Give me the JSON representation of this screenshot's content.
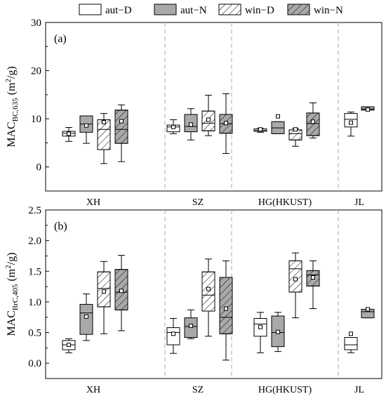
{
  "legend": [
    {
      "label": "aut−D",
      "fill": "#ffffff",
      "hatch": false
    },
    {
      "label": "aut−N",
      "fill": "#a9a9a9",
      "hatch": false
    },
    {
      "label": "win−D",
      "fill": "#ffffff",
      "hatch": true
    },
    {
      "label": "win−N",
      "fill": "#a9a9a9",
      "hatch": true
    }
  ],
  "colors": {
    "gray_fill": "#a9a9a9",
    "white_fill": "#ffffff",
    "stroke": "#000000",
    "divider": "#a8a8a8"
  },
  "chart_data": [
    {
      "type": "box",
      "panel_label": "(a)",
      "ylabel_main": "MAC",
      "ylabel_sub": "BC,635",
      "ylabel_unit": " (m",
      "ylabel_sup": "2",
      "ylabel_tail": "/g)",
      "ylim": [
        -5,
        30
      ],
      "yticks": [
        0,
        10,
        20,
        30
      ],
      "groups": [
        "XH",
        "SZ",
        "HG(HKUST)",
        "JL"
      ],
      "series": [
        {
          "name": "aut−D",
          "boxes": [
            {
              "group": "XH",
              "min": 5.3,
              "q1": 6.4,
              "median": 7.0,
              "q3": 7.4,
              "max": 8.2,
              "mean": 6.9
            },
            {
              "group": "SZ",
              "min": 6.9,
              "q1": 7.3,
              "median": 8.3,
              "q3": 8.7,
              "max": 9.8,
              "mean": 8.3
            },
            {
              "group": "HG(HKUST)",
              "min": 7.2,
              "q1": 7.4,
              "median": 7.6,
              "q3": 7.9,
              "max": 8.0,
              "mean": 7.8
            },
            {
              "group": "JL",
              "min": 6.4,
              "q1": 8.3,
              "median": 9.9,
              "q3": 11.1,
              "max": 11.4,
              "mean": 9.2
            }
          ]
        },
        {
          "name": "aut−N",
          "boxes": [
            {
              "group": "XH",
              "min": 4.9,
              "q1": 7.2,
              "median": 8.9,
              "q3": 10.6,
              "max": 10.6,
              "mean": 8.6
            },
            {
              "group": "SZ",
              "min": 5.6,
              "q1": 7.3,
              "median": 8.4,
              "q3": 10.9,
              "max": 12.1,
              "mean": 8.8
            },
            {
              "group": "HG(HKUST)",
              "min": 6.9,
              "q1": 6.9,
              "median": 8.1,
              "q3": 9.4,
              "max": 9.4,
              "mean": 10.5
            },
            {
              "group": "JL",
              "min": 11.8,
              "q1": 11.8,
              "median": 12.0,
              "q3": 12.5,
              "max": 12.5,
              "mean": 11.9
            }
          ]
        },
        {
          "name": "win−D",
          "boxes": [
            {
              "group": "XH",
              "min": 0.7,
              "q1": 3.6,
              "median": 7.8,
              "q3": 9.8,
              "max": 11.1,
              "mean": 9.3
            },
            {
              "group": "SZ",
              "min": 6.5,
              "q1": 7.5,
              "median": 9.1,
              "q3": 11.6,
              "max": 14.9,
              "mean": 9.8
            },
            {
              "group": "HG(HKUST)",
              "min": 4.3,
              "q1": 5.6,
              "median": 6.9,
              "q3": 7.7,
              "max": 8.0,
              "mean": 7.8
            }
          ]
        },
        {
          "name": "win−N",
          "boxes": [
            {
              "group": "XH",
              "min": 1.1,
              "q1": 4.9,
              "median": 7.8,
              "q3": 11.8,
              "max": 12.9,
              "mean": 9.5
            },
            {
              "group": "SZ",
              "min": 2.8,
              "q1": 7.0,
              "median": 9.0,
              "q3": 10.9,
              "max": 15.2,
              "mean": 9.1
            },
            {
              "group": "HG(HKUST)",
              "min": 6.0,
              "q1": 6.5,
              "median": 9.0,
              "q3": 11.2,
              "max": 13.3,
              "mean": 9.4
            }
          ]
        }
      ]
    },
    {
      "type": "box",
      "panel_label": "(b)",
      "ylabel_main": "MAC",
      "ylabel_sub": "BrC,405",
      "ylabel_unit": " (m",
      "ylabel_sup": "2",
      "ylabel_tail": "/g)",
      "ylim": [
        -0.25,
        2.5
      ],
      "yticks": [
        0.0,
        0.5,
        1.0,
        1.5,
        2.0,
        2.5
      ],
      "groups": [
        "XH",
        "SZ",
        "HG(HKUST)",
        "JL"
      ],
      "series": [
        {
          "name": "aut−D",
          "boxes": [
            {
              "group": "XH",
              "min": 0.17,
              "q1": 0.22,
              "median": 0.3,
              "q3": 0.37,
              "max": 0.4,
              "mean": 0.3
            },
            {
              "group": "SZ",
              "min": 0.16,
              "q1": 0.3,
              "median": 0.5,
              "q3": 0.58,
              "max": 0.73,
              "mean": 0.48
            },
            {
              "group": "HG(HKUST)",
              "min": 0.17,
              "q1": 0.44,
              "median": 0.64,
              "q3": 0.73,
              "max": 0.83,
              "mean": 0.59
            },
            {
              "group": "JL",
              "min": 0.17,
              "q1": 0.22,
              "median": 0.3,
              "q3": 0.42,
              "max": 0.42,
              "mean": 0.48
            }
          ]
        },
        {
          "name": "aut−N",
          "boxes": [
            {
              "group": "XH",
              "min": 0.37,
              "q1": 0.47,
              "median": 0.82,
              "q3": 0.96,
              "max": 1.13,
              "mean": 0.76
            },
            {
              "group": "SZ",
              "min": 0.4,
              "q1": 0.42,
              "median": 0.6,
              "q3": 0.74,
              "max": 0.87,
              "mean": 0.61
            },
            {
              "group": "HG(HKUST)",
              "min": 0.19,
              "q1": 0.27,
              "median": 0.5,
              "q3": 0.77,
              "max": 0.83,
              "mean": 0.51
            },
            {
              "group": "JL",
              "min": 0.74,
              "q1": 0.74,
              "median": 0.84,
              "q3": 0.88,
              "max": 0.88,
              "mean": 0.88
            }
          ]
        },
        {
          "name": "win−D",
          "boxes": [
            {
              "group": "XH",
              "min": 0.48,
              "q1": 0.92,
              "median": 1.22,
              "q3": 1.49,
              "max": 1.66,
              "mean": 1.17
            },
            {
              "group": "SZ",
              "min": 0.44,
              "q1": 0.85,
              "median": 1.11,
              "q3": 1.49,
              "max": 1.7,
              "mean": 1.21
            },
            {
              "group": "HG(HKUST)",
              "min": 0.74,
              "q1": 1.16,
              "median": 1.54,
              "q3": 1.67,
              "max": 1.8,
              "mean": 1.37
            }
          ]
        },
        {
          "name": "win−N",
          "boxes": [
            {
              "group": "XH",
              "min": 0.53,
              "q1": 0.87,
              "median": 1.16,
              "q3": 1.53,
              "max": 1.76,
              "mean": 1.18
            },
            {
              "group": "SZ",
              "min": 0.05,
              "q1": 0.48,
              "median": 0.75,
              "q3": 1.4,
              "max": 1.67,
              "mean": 0.89
            },
            {
              "group": "HG(HKUST)",
              "min": 0.89,
              "q1": 1.26,
              "median": 1.44,
              "q3": 1.51,
              "max": 1.67,
              "mean": 1.4
            }
          ]
        }
      ]
    }
  ]
}
